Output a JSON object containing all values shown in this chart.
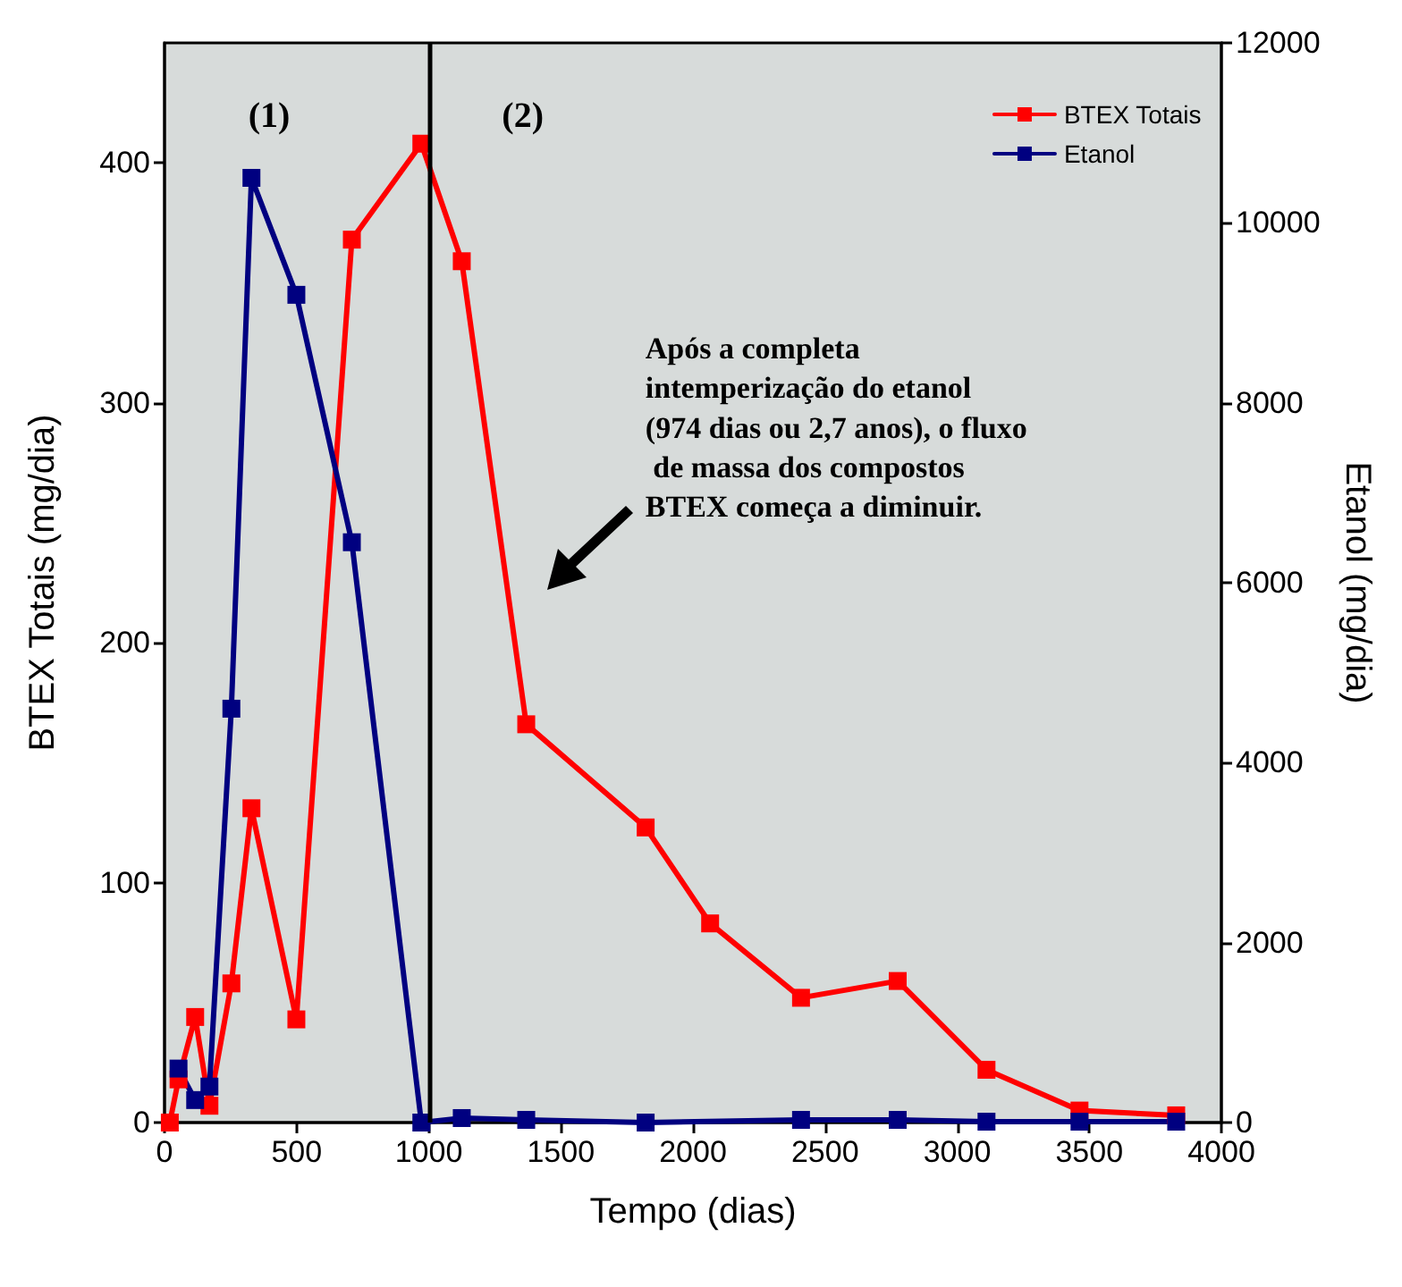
{
  "chart_data": {
    "type": "line",
    "xlabel": "Tempo (dias)",
    "ylabel": "BTEX Totais (mg/dia)",
    "y2label": "Etanol (mg/dia)",
    "series": [
      {
        "name": "BTEX Totais",
        "color": "#ff0000",
        "x": [
          20,
          53,
          116,
          170,
          253,
          329,
          499,
          709,
          972,
          1125,
          1369,
          1821,
          2065,
          2409,
          2775,
          3111,
          3463,
          3829
        ],
        "values": [
          0,
          18,
          44,
          7,
          58,
          131,
          43,
          368,
          408,
          359,
          166,
          123,
          83,
          52,
          59,
          22,
          5,
          3
        ]
      },
      {
        "name": "Etanol",
        "color": "#000080",
        "axis": "y2",
        "x": [
          53,
          116,
          170,
          253,
          329,
          499,
          709,
          972,
          1125,
          1369,
          1821,
          2409,
          2775,
          3111,
          3463,
          3829
        ],
        "values": [
          600,
          250,
          400,
          4600,
          10500,
          9200,
          6450,
          0,
          50,
          30,
          0,
          30,
          30,
          10,
          10,
          10
        ]
      }
    ],
    "xlim": [
      0,
      4000
    ],
    "xticks": [
      0,
      500,
      1000,
      1500,
      2000,
      2500,
      3000,
      3500,
      4000
    ],
    "ylim": [
      0,
      450
    ],
    "yticks": [
      0,
      100,
      200,
      300,
      400
    ],
    "y2lim": [
      0,
      12000
    ],
    "y2ticks": [
      0,
      2000,
      4000,
      6000,
      8000,
      10000,
      12000
    ],
    "ref_lines": [
      {
        "axis": "x",
        "value": 1000,
        "color": "#000000"
      }
    ],
    "annotations": [
      "(1)",
      "(2)",
      "Após a completa intemperização do etanol (974 dias ou 2,7 anos), o fluxo de massa dos compostos BTEX começa a diminuir."
    ],
    "legend": "top right",
    "marker": "square",
    "line_style": "solid",
    "grid": false
  }
}
